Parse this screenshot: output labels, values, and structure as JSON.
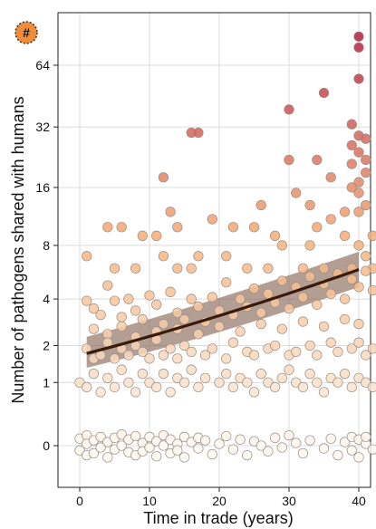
{
  "chart_data": {
    "type": "scatter",
    "title": "",
    "xlabel": "Time in trade (years)",
    "ylabel": "Number of pathogens shared with humans",
    "xlim": [
      -2,
      42
    ],
    "x_ticks": [
      0,
      10,
      20,
      30,
      40
    ],
    "y_scale": "pseudo-log2",
    "y_ticks": [
      0,
      1,
      2,
      4,
      8,
      16,
      32,
      64
    ],
    "grid": true,
    "legend": "none",
    "legend_badge": "#",
    "fit_line": {
      "x": [
        1,
        40
      ],
      "y": [
        1.75,
        5.9
      ],
      "color": "#3a1a0a"
    },
    "fit_band": {
      "x": [
        1,
        40
      ],
      "lower": [
        1.35,
        4.7
      ],
      "upper": [
        2.3,
        7.4
      ],
      "color": "#8a6a5a"
    },
    "color_scale": {
      "low": "#fbf7f0",
      "mid": "#f5b079",
      "high": "#b21f3f"
    },
    "series": [
      {
        "points": [
          [
            16,
            30
          ],
          [
            17,
            30
          ],
          [
            12,
            18
          ],
          [
            40,
            88
          ],
          [
            40,
            78
          ],
          [
            35,
            47
          ],
          [
            40,
            55
          ],
          [
            30,
            39
          ],
          [
            39,
            33
          ],
          [
            40,
            29
          ],
          [
            39,
            26
          ],
          [
            41,
            28
          ],
          [
            40,
            24
          ],
          [
            41,
            22
          ],
          [
            39,
            21
          ],
          [
            34,
            22
          ],
          [
            30,
            22
          ],
          [
            36,
            18
          ],
          [
            40,
            17
          ],
          [
            41,
            19
          ],
          [
            39,
            16
          ],
          [
            40,
            15
          ],
          [
            31,
            15
          ],
          [
            41,
            13
          ],
          [
            40,
            12
          ],
          [
            38,
            12
          ],
          [
            26,
            13
          ],
          [
            33,
            13
          ],
          [
            13,
            12
          ],
          [
            36,
            11
          ],
          [
            19,
            11
          ],
          [
            4,
            10
          ],
          [
            6,
            10
          ],
          [
            14,
            10
          ],
          [
            11,
            9
          ],
          [
            9,
            9
          ],
          [
            22,
            10
          ],
          [
            25,
            10
          ],
          [
            28,
            9
          ],
          [
            34,
            10
          ],
          [
            38,
            9
          ],
          [
            42,
            9
          ],
          [
            1,
            7
          ],
          [
            12,
            7
          ],
          [
            17,
            7
          ],
          [
            21,
            7
          ],
          [
            29,
            8
          ],
          [
            33,
            8
          ],
          [
            40,
            8
          ],
          [
            41,
            7
          ],
          [
            5,
            6
          ],
          [
            8,
            6
          ],
          [
            14,
            6
          ],
          [
            16,
            6
          ],
          [
            24,
            6
          ],
          [
            27,
            6
          ],
          [
            32,
            6
          ],
          [
            35,
            6
          ],
          [
            39,
            6
          ],
          [
            42,
            6
          ]
        ]
      },
      {
        "points": [
          [
            1,
            3.9
          ],
          [
            2,
            3.5
          ],
          [
            3,
            3.2
          ],
          [
            4,
            4.8
          ],
          [
            5,
            3.9
          ],
          [
            6,
            3.1
          ],
          [
            7,
            4.0
          ],
          [
            8,
            3.4
          ],
          [
            9,
            3.0
          ],
          [
            10,
            4.2
          ],
          [
            11,
            3.7
          ],
          [
            12,
            2.8
          ],
          [
            13,
            4.4
          ],
          [
            14,
            3.3
          ],
          [
            15,
            3.0
          ],
          [
            16,
            4.0
          ],
          [
            17,
            3.6
          ],
          [
            18,
            2.9
          ],
          [
            19,
            4.1
          ],
          [
            20,
            3.4
          ],
          [
            21,
            5.0
          ],
          [
            22,
            3.2
          ],
          [
            23,
            4.0
          ],
          [
            24,
            3.6
          ],
          [
            25,
            4.6
          ],
          [
            26,
            3.3
          ],
          [
            27,
            4.3
          ],
          [
            28,
            3.8
          ],
          [
            29,
            5.1
          ],
          [
            30,
            3.5
          ],
          [
            31,
            4.7
          ],
          [
            32,
            4.1
          ],
          [
            33,
            5.4
          ],
          [
            34,
            3.7
          ],
          [
            35,
            4.9
          ],
          [
            36,
            4.3
          ],
          [
            37,
            5.6
          ],
          [
            38,
            4.0
          ],
          [
            39,
            5.2
          ],
          [
            40,
            4.7
          ],
          [
            41,
            5.8
          ],
          [
            42,
            4.5
          ],
          [
            2,
            2.6
          ],
          [
            4,
            2.4
          ],
          [
            6,
            2.7
          ],
          [
            8,
            2.3
          ],
          [
            11,
            2.5
          ],
          [
            14,
            2.6
          ],
          [
            17,
            2.4
          ],
          [
            20,
            2.7
          ],
          [
            23,
            2.5
          ],
          [
            26,
            2.8
          ],
          [
            29,
            2.6
          ],
          [
            32,
            2.9
          ],
          [
            35,
            2.7
          ],
          [
            38,
            3.0
          ],
          [
            40,
            2.8
          ]
        ]
      },
      {
        "points": [
          [
            1,
            1.9
          ],
          [
            2,
            1.6
          ],
          [
            3,
            1.7
          ],
          [
            4,
            2.1
          ],
          [
            5,
            1.6
          ],
          [
            6,
            1.9
          ],
          [
            7,
            1.7
          ],
          [
            8,
            2.0
          ],
          [
            9,
            1.8
          ],
          [
            10,
            1.6
          ],
          [
            11,
            2.2
          ],
          [
            12,
            1.7
          ],
          [
            13,
            1.9
          ],
          [
            14,
            1.6
          ],
          [
            15,
            2.0
          ],
          [
            16,
            1.8
          ],
          [
            18,
            1.7
          ],
          [
            19,
            1.9
          ],
          [
            21,
            1.6
          ],
          [
            22,
            2.1
          ],
          [
            24,
            1.8
          ],
          [
            25,
            1.7
          ],
          [
            27,
            1.9
          ],
          [
            28,
            2.0
          ],
          [
            30,
            1.7
          ],
          [
            31,
            1.8
          ],
          [
            33,
            2.0
          ],
          [
            34,
            1.7
          ],
          [
            36,
            2.1
          ],
          [
            37,
            1.8
          ],
          [
            39,
            1.9
          ],
          [
            40,
            2.1
          ],
          [
            41,
            1.7
          ],
          [
            42,
            1.9
          ]
        ]
      },
      {
        "points": [
          [
            0,
            1.0
          ],
          [
            1,
            0.9
          ],
          [
            2,
            1.2
          ],
          [
            3,
            0.8
          ],
          [
            4,
            1.1
          ],
          [
            5,
            0.9
          ],
          [
            6,
            1.3
          ],
          [
            7,
            1.0
          ],
          [
            8,
            0.8
          ],
          [
            9,
            1.2
          ],
          [
            10,
            1.0
          ],
          [
            11,
            0.9
          ],
          [
            12,
            1.2
          ],
          [
            13,
            0.8
          ],
          [
            14,
            1.1
          ],
          [
            15,
            1.0
          ],
          [
            16,
            1.3
          ],
          [
            17,
            0.9
          ],
          [
            18,
            1.1
          ],
          [
            20,
            1.0
          ],
          [
            21,
            1.2
          ],
          [
            22,
            0.9
          ],
          [
            23,
            1.1
          ],
          [
            24,
            1.0
          ],
          [
            25,
            0.8
          ],
          [
            26,
            1.2
          ],
          [
            27,
            1.0
          ],
          [
            28,
            0.9
          ],
          [
            29,
            1.1
          ],
          [
            30,
            1.3
          ],
          [
            31,
            1.0
          ],
          [
            32,
            0.9
          ],
          [
            33,
            1.2
          ],
          [
            34,
            1.0
          ],
          [
            35,
            0.8
          ],
          [
            36,
            1.1
          ],
          [
            37,
            1.0
          ],
          [
            38,
            1.2
          ],
          [
            39,
            0.9
          ],
          [
            40,
            1.1
          ],
          [
            41,
            1.0
          ],
          [
            42,
            0.9
          ]
        ]
      },
      {
        "points": [
          [
            0,
            0.08
          ],
          [
            0,
            -0.05
          ],
          [
            1,
            0.12
          ],
          [
            1,
            -0.1
          ],
          [
            1,
            0.02
          ],
          [
            2,
            0.06
          ],
          [
            2,
            -0.08
          ],
          [
            3,
            0.1
          ],
          [
            3,
            -0.02
          ],
          [
            4,
            0.04
          ],
          [
            4,
            -0.12
          ],
          [
            5,
            0.09
          ],
          [
            5,
            -0.04
          ],
          [
            6,
            0.13
          ],
          [
            6,
            0.0
          ],
          [
            7,
            -0.07
          ],
          [
            7,
            0.07
          ],
          [
            8,
            0.11
          ],
          [
            8,
            -0.1
          ],
          [
            9,
            0.03
          ],
          [
            9,
            -0.06
          ],
          [
            10,
            0.1
          ],
          [
            10,
            -0.02
          ],
          [
            11,
            0.05
          ],
          [
            11,
            -0.11
          ],
          [
            12,
            0.12
          ],
          [
            12,
            0.0
          ],
          [
            13,
            -0.08
          ],
          [
            13,
            0.07
          ],
          [
            14,
            0.02
          ],
          [
            14,
            -0.05
          ],
          [
            15,
            0.1
          ],
          [
            15,
            -0.12
          ],
          [
            16,
            0.04
          ],
          [
            17,
            -0.03
          ],
          [
            17,
            0.09
          ],
          [
            18,
            0.06
          ],
          [
            19,
            -0.09
          ],
          [
            20,
            0.02
          ],
          [
            21,
            0.11
          ],
          [
            22,
            -0.04
          ],
          [
            23,
            0.07
          ],
          [
            24,
            -0.1
          ],
          [
            25,
            0.05
          ],
          [
            26,
            0.0
          ],
          [
            27,
            -0.06
          ],
          [
            28,
            0.09
          ],
          [
            29,
            -0.02
          ],
          [
            30,
            0.12
          ],
          [
            31,
            0.03
          ],
          [
            32,
            -0.08
          ],
          [
            33,
            0.06
          ],
          [
            35,
            -0.03
          ],
          [
            36,
            0.08
          ],
          [
            37,
            -0.1
          ],
          [
            38,
            0.04
          ],
          [
            39,
            0.1
          ],
          [
            39,
            -0.05
          ],
          [
            40,
            0.07
          ],
          [
            40,
            -0.12
          ],
          [
            41,
            0.02
          ],
          [
            41,
            0.1
          ],
          [
            42,
            -0.04
          ]
        ]
      }
    ]
  }
}
